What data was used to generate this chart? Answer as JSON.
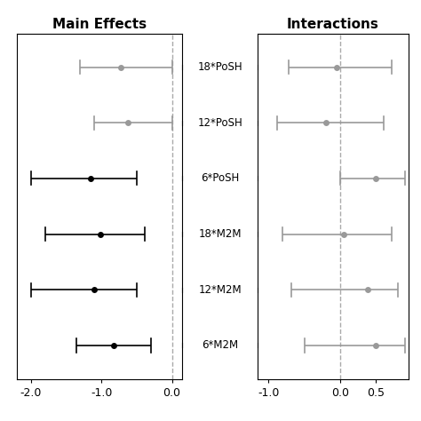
{
  "labels": [
    "18*PoSH",
    "12*PoSH",
    "6*PoSH",
    "18*M2M",
    "12*M2M",
    "6*M2M"
  ],
  "main_effects": {
    "centers": [
      -0.72,
      -0.62,
      -1.15,
      -1.02,
      -1.1,
      -0.82
    ],
    "lo": [
      -1.3,
      -1.1,
      -2.0,
      -1.8,
      -2.0,
      -1.35
    ],
    "hi": [
      0.0,
      0.0,
      -0.5,
      -0.38,
      -0.5,
      -0.3
    ],
    "colors": [
      "#999999",
      "#999999",
      "#000000",
      "#000000",
      "#000000",
      "#000000"
    ]
  },
  "interactions": {
    "centers": [
      -0.05,
      -0.2,
      0.5,
      0.05,
      0.38,
      0.5
    ],
    "lo": [
      -0.72,
      -0.88,
      0.0,
      -0.8,
      -0.68,
      -0.5
    ],
    "hi": [
      0.72,
      0.6,
      0.9,
      0.72,
      0.8,
      0.9
    ],
    "colors": [
      "#999999",
      "#999999",
      "#999999",
      "#999999",
      "#999999",
      "#999999"
    ]
  },
  "main_xlim": [
    -2.2,
    0.15
  ],
  "main_xticks": [
    -2.0,
    -1.0,
    0.0
  ],
  "int_xlim": [
    -1.15,
    0.95
  ],
  "int_xticks": [
    -1.0,
    0.0,
    0.5
  ],
  "title_main": "Main Effects",
  "title_int": "Interactions",
  "dashed_color": "#aaaaaa",
  "tick_cap_size": 0.12
}
